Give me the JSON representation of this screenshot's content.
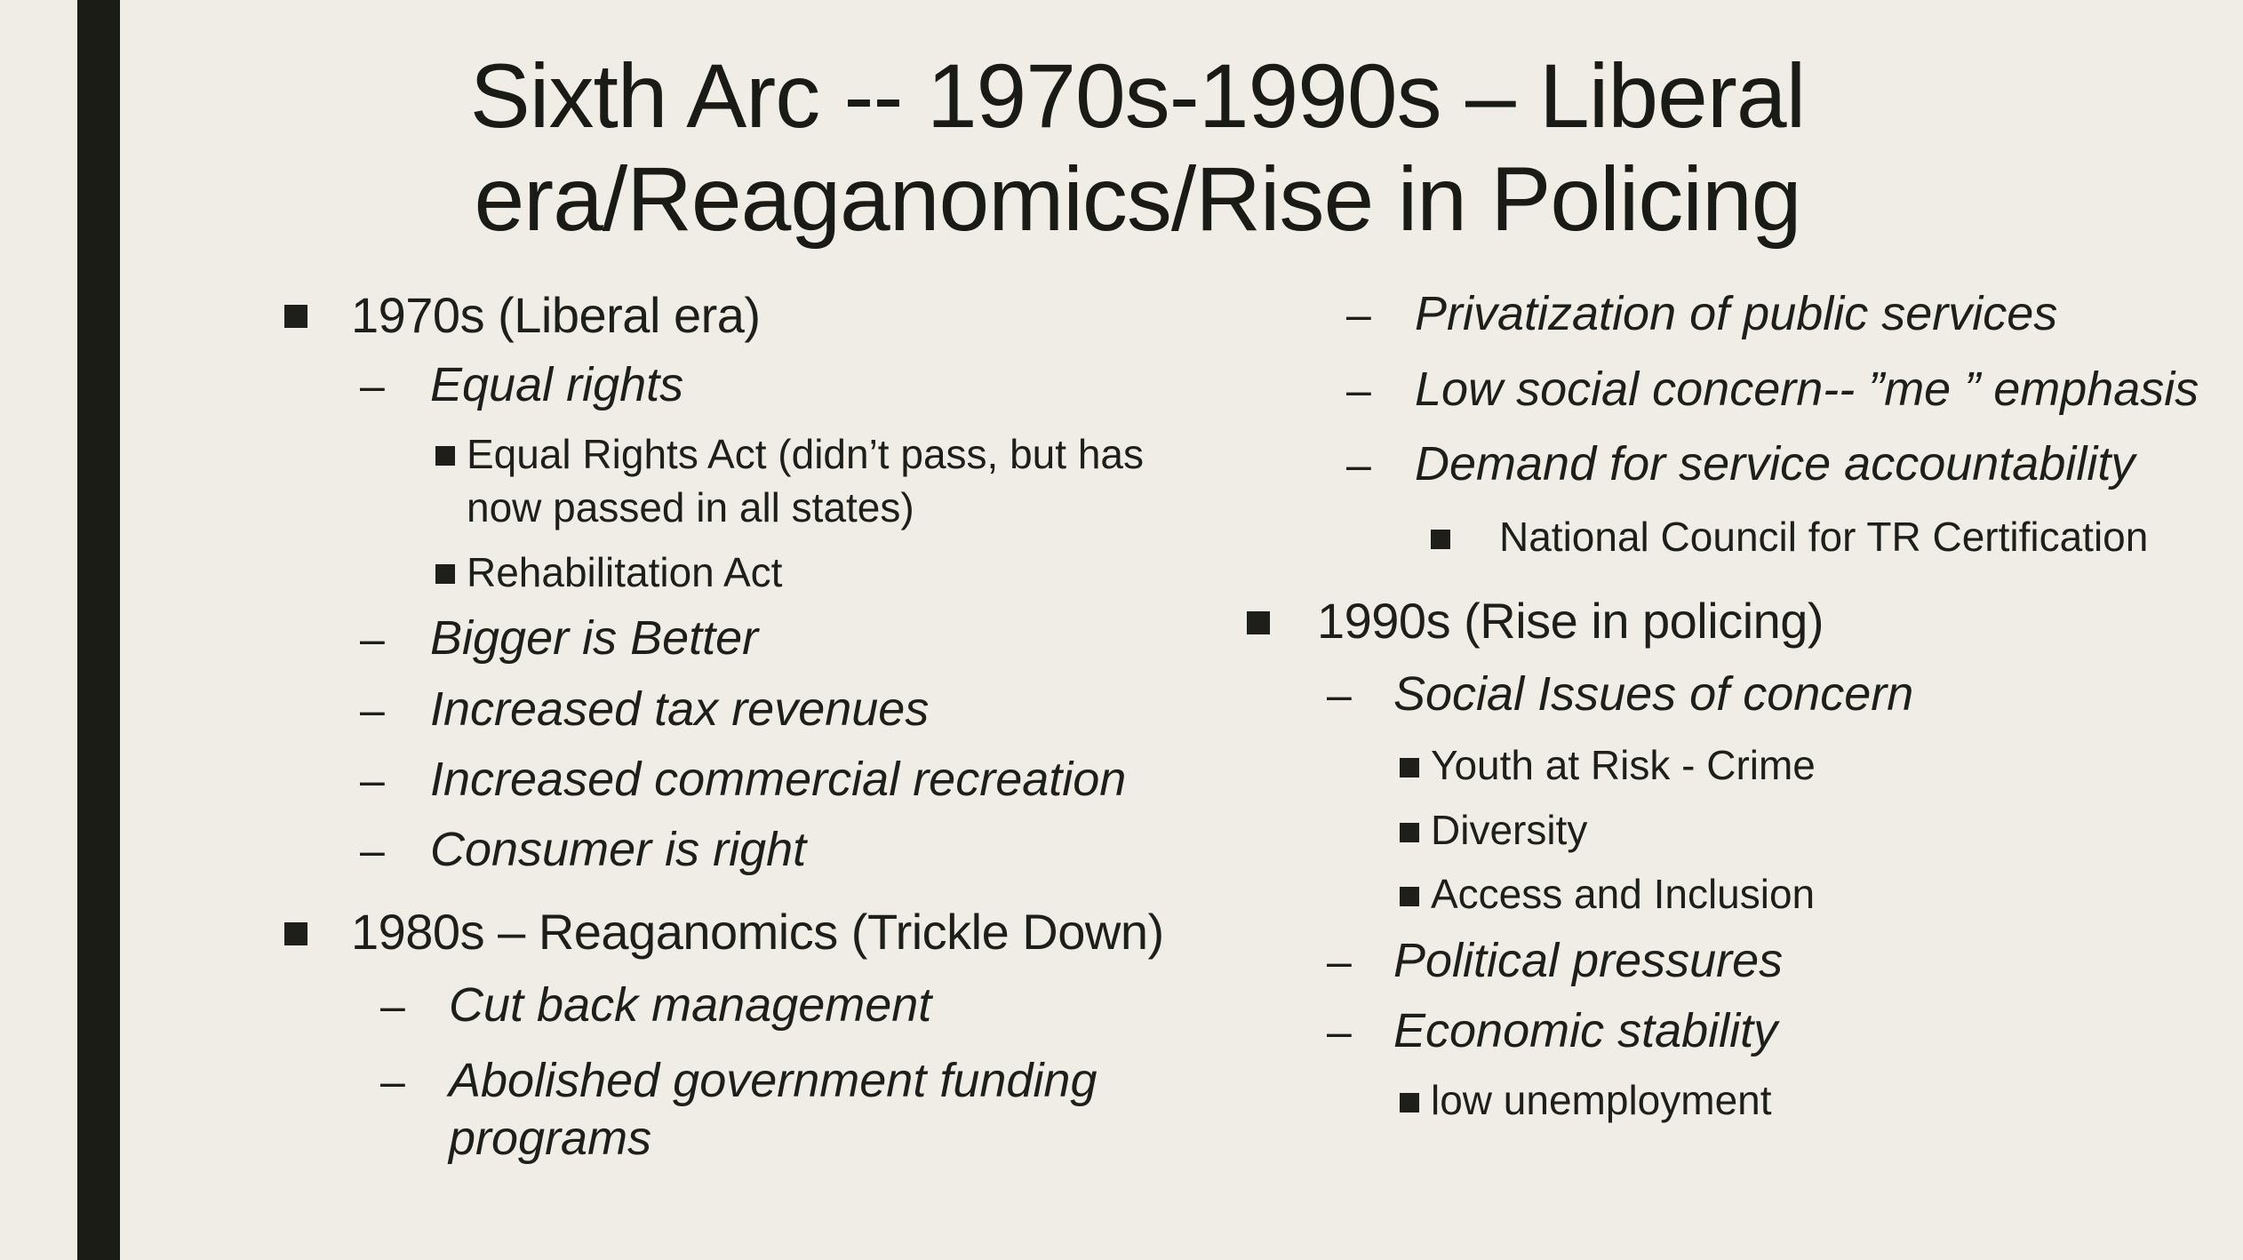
{
  "slide": {
    "title_line1": "Sixth Arc -- 1970s-1990s – Liberal",
    "title_line2": "era/Reaganomics/Rise in Policing"
  },
  "left_column": {
    "s1970": {
      "heading": "1970s (Liberal era)",
      "equal_rights": "Equal rights",
      "era_line1": "Equal Rights Act (didn’t pass, but has",
      "era_line2": "now passed in all states)",
      "rehab": "Rehabilitation Act",
      "bigger": "Bigger is Better",
      "tax": "Increased tax revenues",
      "commercial": "Increased commercial recreation",
      "consumer": "Consumer is right"
    },
    "s1980": {
      "heading": "1980s – Reaganomics (Trickle Down)",
      "cutback": "Cut back management",
      "abolished_line1": "Abolished government funding",
      "abolished_line2": "programs"
    }
  },
  "right_column": {
    "privatization": "Privatization of public services",
    "low_social": "Low social concern-- ”me ” emphasis",
    "demand": "Demand for service accountability",
    "ncrtc": "National Council for TR Certification",
    "s1990": {
      "heading": "1990s (Rise in policing)",
      "social_issues": "Social Issues of concern",
      "youth": "Youth at Risk - Crime",
      "diversity": "Diversity",
      "access": "Access and Inclusion",
      "political": "Political pressures",
      "economic": "Economic stability",
      "unemployment": "low unemployment"
    }
  },
  "glyphs": {
    "dash": "–"
  },
  "colors": {
    "background": "#efede6",
    "sidebar": "#1c1c17",
    "text": "#1e1e1a"
  }
}
